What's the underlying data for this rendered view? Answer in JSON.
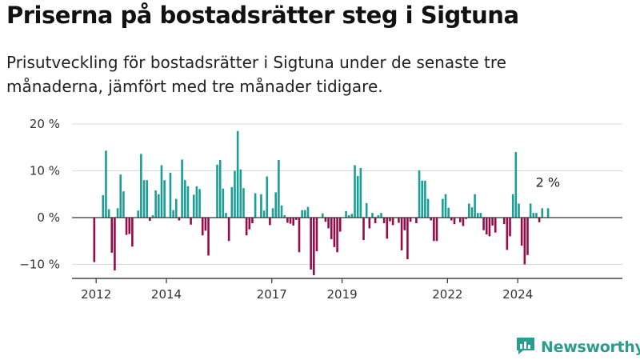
{
  "header": {
    "title": "Priserna på bostadsrätter steg i Sigtuna",
    "subtitle": "Prisutveckling för bostadsrätter i Sigtuna under de senaste tre månaderna, jämfört med tre månader tidigare."
  },
  "brand": {
    "name": "Newsworthy",
    "icon": "newsworthy-logo-icon"
  },
  "colors": {
    "positive": "#1a9e96",
    "negative": "#960c4a",
    "grid": "#d9d9d9",
    "baseline": "#333333",
    "brand": "#2a9d8f"
  },
  "chart_data": {
    "type": "bar",
    "x_start": "2011-12",
    "x_interval": "month",
    "ylim": [
      -13,
      20
    ],
    "yticks": [
      -10,
      0,
      10,
      20
    ],
    "ytick_labels": [
      "−10 %",
      "0 %",
      "10 %",
      "20 %"
    ],
    "xticks": [
      "2012",
      "2014",
      "2017",
      "2019",
      "2022",
      "2024"
    ],
    "grid": true,
    "annotation": "2 %",
    "values": [
      -9.5,
      0,
      0,
      4.8,
      14.3,
      1.8,
      -7.5,
      -11.3,
      2,
      9.2,
      5.6,
      -3.7,
      -3.5,
      -6.2,
      0,
      1.5,
      13.6,
      8,
      8,
      -0.7,
      0.5,
      5.8,
      5,
      11.2,
      8,
      0,
      9.6,
      1.6,
      4,
      -0.6,
      12.4,
      8,
      6.7,
      -1.5,
      4.9,
      6.7,
      6.1,
      -3.8,
      -2.8,
      -8.1,
      0,
      0,
      11.3,
      12.3,
      6.2,
      1,
      -5,
      6.5,
      10,
      18.5,
      10.3,
      6.3,
      -3.8,
      -2.5,
      -1.2,
      5.2,
      0,
      5,
      1.5,
      8.8,
      -1.6,
      2,
      5.4,
      12.3,
      2.6,
      0.5,
      -1.1,
      -1.3,
      -1.7,
      -0.5,
      -7.4,
      1.6,
      1.6,
      2.3,
      -11.1,
      -12.3,
      -7.2,
      0,
      0.9,
      -0.9,
      -2.3,
      -4.6,
      -6.3,
      -7.4,
      -3,
      0,
      1.4,
      0.5,
      0.8,
      11.2,
      8.9,
      10.6,
      -4.8,
      3.1,
      -2.3,
      1,
      -1.2,
      0.5,
      1,
      -1.2,
      -4.5,
      -0.8,
      -1.6,
      0,
      -1.1,
      -7,
      -2.7,
      -8.9,
      -0.9,
      0,
      -1.2,
      10.1,
      7.9,
      7.9,
      4,
      -0.6,
      -5,
      -5,
      0,
      4,
      5,
      2.1,
      -0.6,
      -1.4,
      0,
      -1,
      -1.8,
      -0.3,
      3,
      2.2,
      5,
      1,
      1,
      -2.7,
      -3.6,
      -4,
      -1.7,
      -3.2,
      0,
      0,
      -1.4,
      -6.9,
      -4,
      5,
      14,
      3,
      -6,
      -10,
      -8,
      3,
      1,
      1,
      -1,
      2,
      0,
      2
    ]
  }
}
